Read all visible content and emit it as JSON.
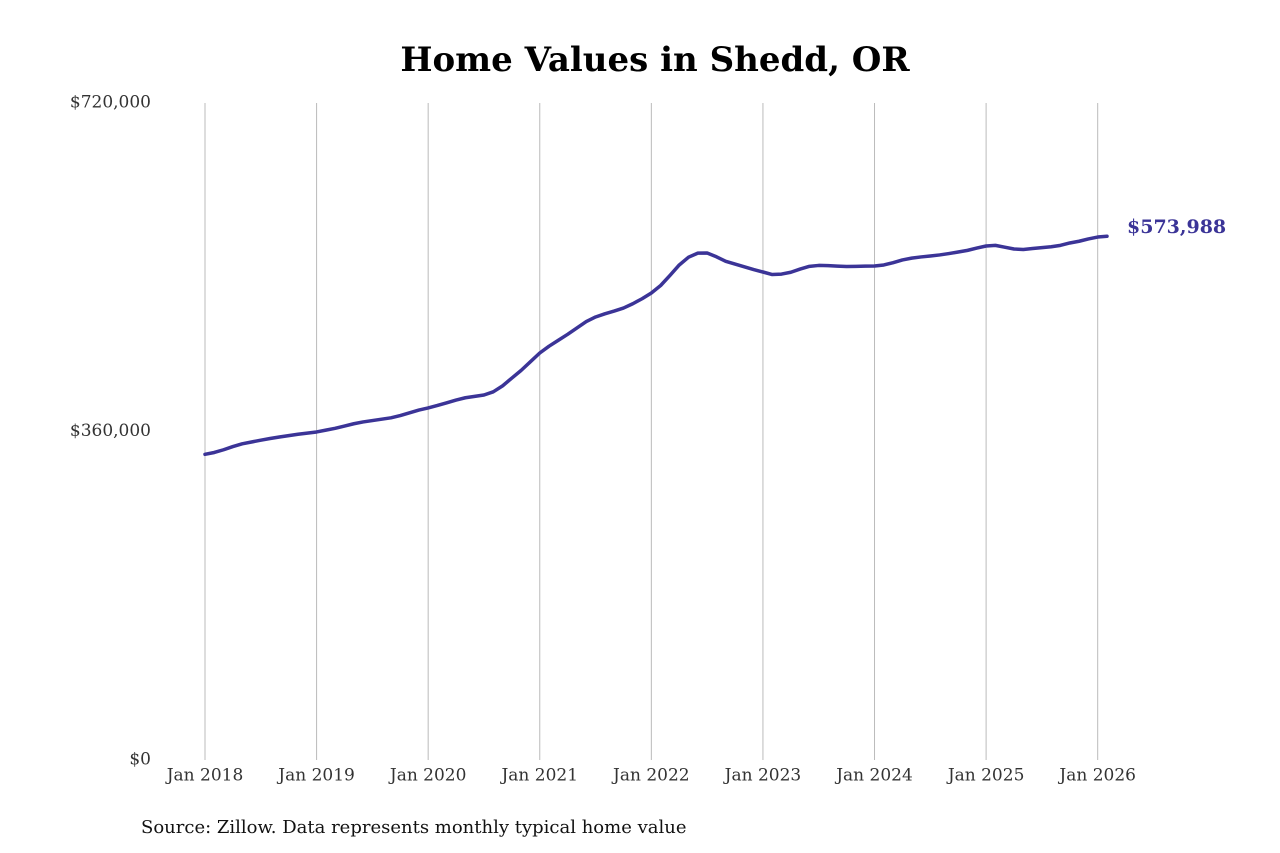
{
  "chart_data": {
    "type": "line",
    "title": "Home Values in Shedd, OR",
    "source": "Source: Zillow. Data represents monthly typical home value",
    "x": [
      "2018-01",
      "2018-02",
      "2018-03",
      "2018-04",
      "2018-05",
      "2018-06",
      "2018-07",
      "2018-08",
      "2018-09",
      "2018-10",
      "2018-11",
      "2018-12",
      "2019-01",
      "2019-02",
      "2019-03",
      "2019-04",
      "2019-05",
      "2019-06",
      "2019-07",
      "2019-08",
      "2019-09",
      "2019-10",
      "2019-11",
      "2019-12",
      "2020-01",
      "2020-02",
      "2020-03",
      "2020-04",
      "2020-05",
      "2020-06",
      "2020-07",
      "2020-08",
      "2020-09",
      "2020-10",
      "2020-11",
      "2020-12",
      "2021-01",
      "2021-02",
      "2021-03",
      "2021-04",
      "2021-05",
      "2021-06",
      "2021-07",
      "2021-08",
      "2021-09",
      "2021-10",
      "2021-11",
      "2021-12",
      "2022-01",
      "2022-02",
      "2022-03",
      "2022-04",
      "2022-05",
      "2022-06",
      "2022-07",
      "2022-08",
      "2022-09",
      "2022-10",
      "2022-11",
      "2022-12",
      "2023-01",
      "2023-02",
      "2023-03",
      "2023-04",
      "2023-05",
      "2023-06",
      "2023-07",
      "2023-08",
      "2023-09",
      "2023-10",
      "2023-11",
      "2023-12",
      "2024-01",
      "2024-02",
      "2024-03",
      "2024-04",
      "2024-05",
      "2024-06",
      "2024-07",
      "2024-08",
      "2024-09",
      "2024-10",
      "2024-11",
      "2024-12",
      "2025-01",
      "2025-02",
      "2025-03",
      "2025-04",
      "2025-05",
      "2025-06",
      "2025-07",
      "2025-08",
      "2025-09",
      "2025-10",
      "2025-11",
      "2025-12",
      "2026-01",
      "2026-02"
    ],
    "series": [
      {
        "name": "Home value",
        "color": "#3b3497",
        "values": [
          335000,
          337000,
          340000,
          343500,
          346500,
          348500,
          350500,
          352300,
          354000,
          355500,
          357000,
          358200,
          359500,
          361500,
          363500,
          366000,
          368500,
          370500,
          372000,
          373500,
          375000,
          377500,
          380500,
          383500,
          385800,
          388500,
          391500,
          394500,
          397000,
          398500,
          400000,
          403500,
          410000,
          418600,
          427000,
          436500,
          446000,
          453500,
          460000,
          466500,
          473500,
          480500,
          485500,
          489000,
          492000,
          495300,
          500000,
          505500,
          511800,
          520000,
          531000,
          542500,
          551000,
          555500,
          555600,
          551500,
          546500,
          543500,
          540500,
          537500,
          534800,
          532000,
          532500,
          534500,
          538000,
          541000,
          542000,
          541800,
          541200,
          540800,
          541000,
          541200,
          541400,
          542500,
          545000,
          548000,
          550000,
          551300,
          552300,
          553500,
          555000,
          556700,
          558500,
          561000,
          563300,
          564000,
          562000,
          560000,
          559500,
          560500,
          561500,
          562500,
          564000,
          566600,
          568500,
          571000,
          573100,
          573988
        ],
        "value_labels": [
          null,
          null,
          null,
          null,
          null,
          null,
          null,
          null,
          null,
          null,
          null,
          null,
          null,
          null,
          null,
          null,
          null,
          null,
          null,
          null,
          null,
          null,
          null,
          null,
          null,
          null,
          null,
          null,
          null,
          null,
          null,
          null,
          null,
          null,
          null,
          null,
          null,
          null,
          null,
          null,
          null,
          null,
          null,
          null,
          null,
          null,
          null,
          null,
          null,
          null,
          null,
          null,
          null,
          null,
          null,
          null,
          null,
          null,
          null,
          null,
          null,
          null,
          null,
          null,
          null,
          null,
          null,
          null,
          null,
          null,
          null,
          null,
          null,
          null,
          null,
          null,
          null,
          null,
          null,
          null,
          null,
          null,
          null,
          null,
          null,
          null,
          null,
          null,
          null,
          null,
          null,
          null,
          null,
          null,
          null,
          null,
          null,
          "$573,988"
        ]
      }
    ],
    "xlim": [
      "2018-01",
      "2026-02"
    ],
    "xticks": [
      {
        "value": "2018-01",
        "label": "Jan 2018"
      },
      {
        "value": "2019-01",
        "label": "Jan 2019"
      },
      {
        "value": "2020-01",
        "label": "Jan 2020"
      },
      {
        "value": "2021-01",
        "label": "Jan 2021"
      },
      {
        "value": "2022-01",
        "label": "Jan 2022"
      },
      {
        "value": "2023-01",
        "label": "Jan 2023"
      },
      {
        "value": "2024-01",
        "label": "Jan 2024"
      },
      {
        "value": "2025-01",
        "label": "Jan 2025"
      },
      {
        "value": "2026-01",
        "label": "Jan 2026"
      }
    ],
    "ylim": [
      0,
      720000
    ],
    "yticks": [
      {
        "value": 0,
        "label": "$0"
      },
      {
        "value": 360000,
        "label": "$360,000"
      },
      {
        "value": 720000,
        "label": "$720,000"
      }
    ],
    "grid": "x"
  }
}
